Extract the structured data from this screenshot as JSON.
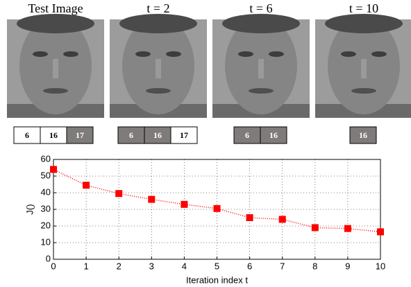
{
  "images": [
    {
      "caption": "Test Image"
    },
    {
      "caption": "t = 2"
    },
    {
      "caption": "t = 6"
    },
    {
      "caption": "t = 10"
    }
  ],
  "label_groups": [
    [
      {
        "label": "6",
        "selected": false
      },
      {
        "label": "16",
        "selected": false
      },
      {
        "label": "17",
        "selected": true
      }
    ],
    [
      {
        "label": "6",
        "selected": true
      },
      {
        "label": "16",
        "selected": true
      },
      {
        "label": "17",
        "selected": false
      }
    ],
    [
      {
        "label": "6",
        "selected": true
      },
      {
        "label": "16",
        "selected": true
      }
    ],
    [
      {
        "label": "16",
        "selected": true
      }
    ]
  ],
  "chart_data": {
    "type": "line",
    "x_label": "Iteration index t",
    "y_label": "J()",
    "x": [
      0,
      1,
      2,
      3,
      4,
      5,
      6,
      7,
      8,
      9,
      10
    ],
    "values": [
      54,
      44.5,
      39.5,
      36,
      33,
      30.5,
      25,
      24,
      19,
      18.5,
      16.5
    ],
    "color": "#ff0000",
    "marker": "square",
    "xlim": [
      0,
      10
    ],
    "ylim": [
      0,
      60
    ],
    "xticks": [
      0,
      1,
      2,
      3,
      4,
      5,
      6,
      7,
      8,
      9,
      10
    ],
    "yticks": [
      0,
      10,
      20,
      30,
      40,
      50,
      60
    ],
    "grid": true
  }
}
